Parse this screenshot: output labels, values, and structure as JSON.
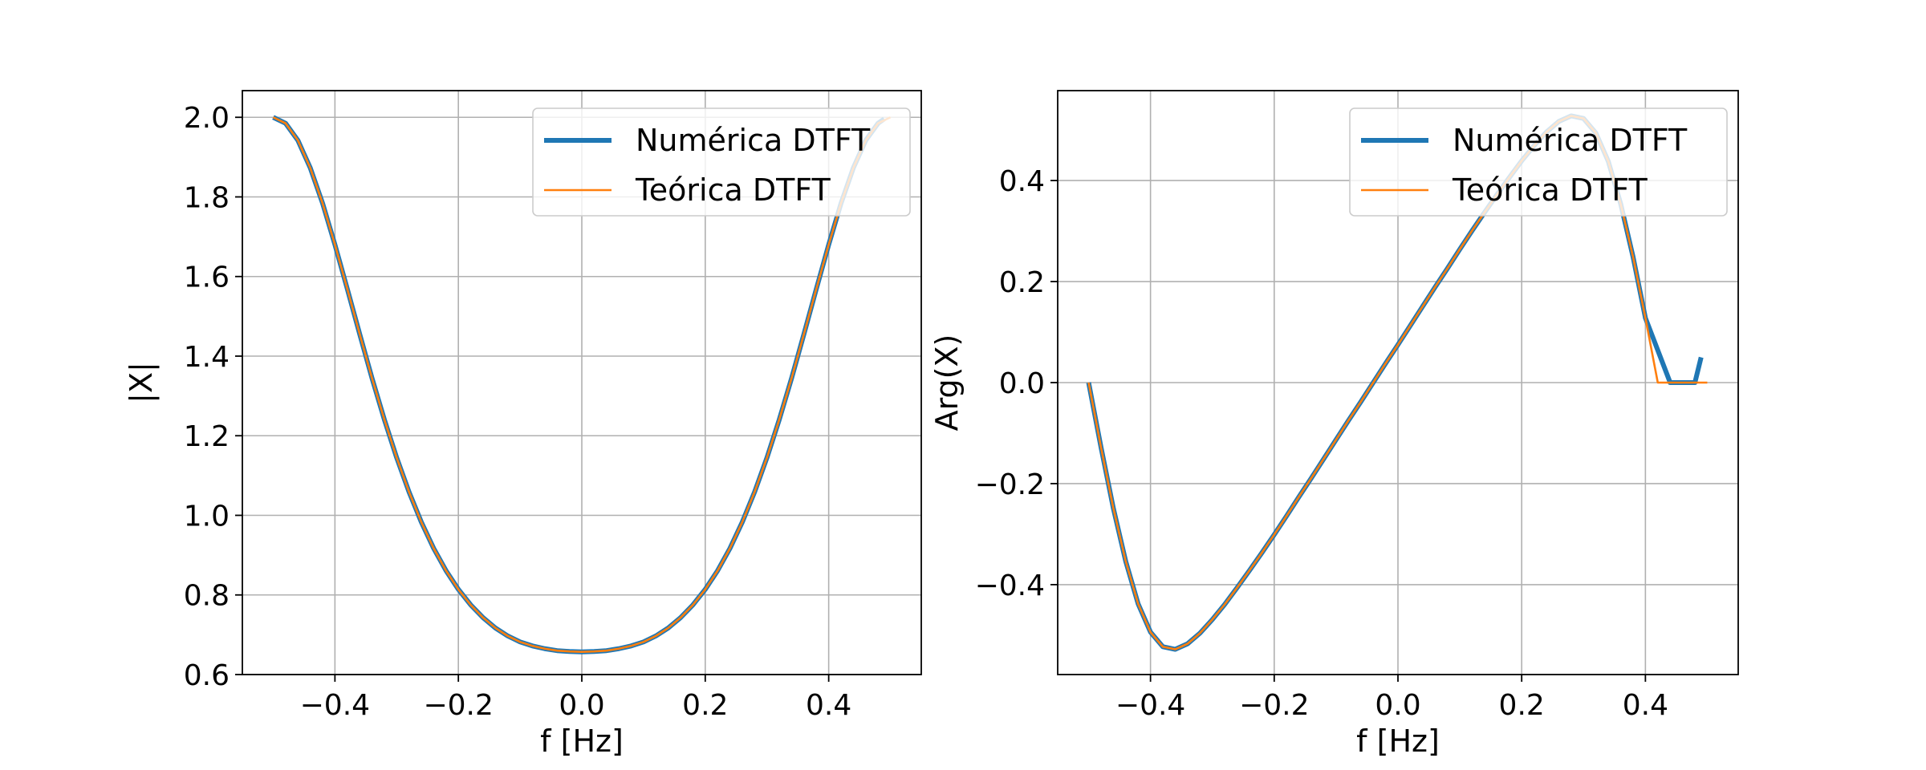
{
  "chart_data": [
    {
      "type": "line",
      "title": "",
      "xlabel": "f [Hz]",
      "ylabel": "|X|",
      "xlim": [
        -0.55,
        0.55
      ],
      "ylim": [
        0.6,
        2.067
      ],
      "xticks": [
        -0.4,
        -0.2,
        0.0,
        0.2,
        0.4
      ],
      "xtick_labels": [
        "−0.4",
        "−0.2",
        "0.0",
        "0.2",
        "0.4"
      ],
      "yticks": [
        0.6,
        0.8,
        1.0,
        1.2,
        1.4,
        1.6,
        1.8,
        2.0
      ],
      "ytick_labels": [
        "0.6",
        "0.8",
        "1.0",
        "1.2",
        "1.4",
        "1.6",
        "1.8",
        "2.0"
      ],
      "grid": true,
      "legend": "top-right",
      "series": [
        {
          "name": "Numérica DTFT",
          "color": "#1f77b4",
          "x": [
            -0.5,
            -0.48,
            -0.46,
            -0.44,
            -0.42,
            -0.4,
            -0.38,
            -0.36,
            -0.34,
            -0.32,
            -0.3,
            -0.28,
            -0.26,
            -0.24,
            -0.22,
            -0.2,
            -0.18,
            -0.16,
            -0.14,
            -0.12,
            -0.1,
            -0.08,
            -0.06,
            -0.04,
            -0.02,
            0.0,
            0.02,
            0.04,
            0.06,
            0.08,
            0.1,
            0.12,
            0.14,
            0.16,
            0.18,
            0.2,
            0.22,
            0.24,
            0.26,
            0.28,
            0.3,
            0.32,
            0.34,
            0.36,
            0.38,
            0.4,
            0.42,
            0.44,
            0.46,
            0.48,
            0.49
          ],
          "y": [
            2.0,
            1.985,
            1.942,
            1.873,
            1.784,
            1.68,
            1.569,
            1.456,
            1.345,
            1.241,
            1.145,
            1.059,
            0.983,
            0.917,
            0.861,
            0.814,
            0.775,
            0.743,
            0.717,
            0.697,
            0.682,
            0.672,
            0.665,
            0.66,
            0.658,
            0.657,
            0.658,
            0.66,
            0.665,
            0.672,
            0.682,
            0.697,
            0.717,
            0.743,
            0.775,
            0.814,
            0.861,
            0.917,
            0.983,
            1.059,
            1.145,
            1.241,
            1.345,
            1.456,
            1.569,
            1.68,
            1.784,
            1.873,
            1.942,
            1.985,
            1.996
          ]
        },
        {
          "name": "Teórica DTFT",
          "color": "#ff7f0e",
          "x": [
            -0.5,
            -0.48,
            -0.46,
            -0.44,
            -0.42,
            -0.4,
            -0.38,
            -0.36,
            -0.34,
            -0.32,
            -0.3,
            -0.28,
            -0.26,
            -0.24,
            -0.22,
            -0.2,
            -0.18,
            -0.16,
            -0.14,
            -0.12,
            -0.1,
            -0.08,
            -0.06,
            -0.04,
            -0.02,
            0.0,
            0.02,
            0.04,
            0.06,
            0.08,
            0.1,
            0.12,
            0.14,
            0.16,
            0.18,
            0.2,
            0.22,
            0.24,
            0.26,
            0.28,
            0.3,
            0.32,
            0.34,
            0.36,
            0.38,
            0.4,
            0.42,
            0.44,
            0.46,
            0.48,
            0.5
          ],
          "y": [
            2.0,
            1.985,
            1.942,
            1.873,
            1.784,
            1.68,
            1.569,
            1.456,
            1.345,
            1.241,
            1.145,
            1.059,
            0.983,
            0.917,
            0.861,
            0.814,
            0.775,
            0.743,
            0.717,
            0.697,
            0.682,
            0.672,
            0.665,
            0.66,
            0.658,
            0.657,
            0.658,
            0.66,
            0.665,
            0.672,
            0.682,
            0.697,
            0.717,
            0.743,
            0.775,
            0.814,
            0.861,
            0.917,
            0.983,
            1.059,
            1.145,
            1.241,
            1.345,
            1.456,
            1.569,
            1.68,
            1.784,
            1.873,
            1.942,
            1.985,
            2.0
          ]
        }
      ]
    },
    {
      "type": "line",
      "title": "",
      "xlabel": "f [Hz]",
      "ylabel": "Arg(X)",
      "xlim": [
        -0.55,
        0.55
      ],
      "ylim": [
        -0.578,
        0.578
      ],
      "xticks": [
        -0.4,
        -0.2,
        0.0,
        0.2,
        0.4
      ],
      "xtick_labels": [
        "−0.4",
        "−0.2",
        "0.0",
        "0.2",
        "0.4"
      ],
      "yticks": [
        -0.4,
        -0.2,
        0.0,
        0.2,
        0.4
      ],
      "ytick_labels": [
        "−0.4",
        "−0.2",
        "0.0",
        "0.2",
        "0.4"
      ],
      "grid": true,
      "legend": "top-right",
      "series": [
        {
          "name": "Numérica DTFT",
          "color": "#1f77b4",
          "x": [
            -0.5,
            -0.48,
            -0.46,
            -0.44,
            -0.42,
            -0.4,
            -0.38,
            -0.36,
            -0.34,
            -0.32,
            -0.3,
            -0.28,
            -0.26,
            -0.24,
            -0.22,
            -0.2,
            -0.18,
            -0.16,
            -0.14,
            -0.12,
            -0.1,
            -0.08,
            -0.06,
            -0.04,
            -0.02,
            0.0,
            0.02,
            0.04,
            0.06,
            0.08,
            0.1,
            0.12,
            0.14,
            0.16,
            0.18,
            0.2,
            0.22,
            0.24,
            0.26,
            0.28,
            0.3,
            0.32,
            0.34,
            0.36,
            0.38,
            0.4,
            0.42,
            0.44,
            0.46,
            0.48,
            0.49
          ],
          "y": [
            0.0,
            -0.128,
            -0.249,
            -0.354,
            -0.438,
            -0.494,
            -0.523,
            -0.528,
            -0.517,
            -0.496,
            -0.469,
            -0.439,
            -0.406,
            -0.372,
            -0.337,
            -0.301,
            -0.264,
            -0.226,
            -0.189,
            -0.151,
            -0.113,
            -0.075,
            -0.038,
            0.0,
            0.038,
            0.075,
            0.113,
            0.151,
            0.189,
            0.226,
            0.264,
            0.301,
            0.337,
            0.372,
            0.406,
            0.439,
            0.469,
            0.496,
            0.517,
            0.528,
            0.523,
            0.494,
            0.438,
            0.354,
            0.249,
            0.128,
            0.064,
            0.0,
            0.0,
            0.0,
            0.05
          ]
        },
        {
          "name": "Teórica DTFT",
          "color": "#ff7f0e",
          "x": [
            -0.5,
            -0.48,
            -0.46,
            -0.44,
            -0.42,
            -0.4,
            -0.38,
            -0.36,
            -0.34,
            -0.32,
            -0.3,
            -0.28,
            -0.26,
            -0.24,
            -0.22,
            -0.2,
            -0.18,
            -0.16,
            -0.14,
            -0.12,
            -0.1,
            -0.08,
            -0.06,
            -0.04,
            -0.02,
            0.0,
            0.02,
            0.04,
            0.06,
            0.08,
            0.1,
            0.12,
            0.14,
            0.16,
            0.18,
            0.2,
            0.22,
            0.24,
            0.26,
            0.28,
            0.3,
            0.32,
            0.34,
            0.36,
            0.38,
            0.4,
            0.42,
            0.44,
            0.46,
            0.48,
            0.5
          ],
          "y": [
            0.0,
            -0.128,
            -0.249,
            -0.354,
            -0.438,
            -0.494,
            -0.523,
            -0.528,
            -0.517,
            -0.496,
            -0.469,
            -0.439,
            -0.406,
            -0.372,
            -0.337,
            -0.301,
            -0.264,
            -0.226,
            -0.189,
            -0.151,
            -0.113,
            -0.075,
            -0.038,
            0.0,
            0.038,
            0.075,
            0.113,
            0.151,
            0.189,
            0.226,
            0.264,
            0.301,
            0.337,
            0.372,
            0.406,
            0.439,
            0.469,
            0.496,
            0.517,
            0.528,
            0.523,
            0.494,
            0.438,
            0.354,
            0.249,
            0.128,
            0.0,
            0.0,
            0.0,
            0.0,
            0.0
          ]
        }
      ]
    }
  ]
}
